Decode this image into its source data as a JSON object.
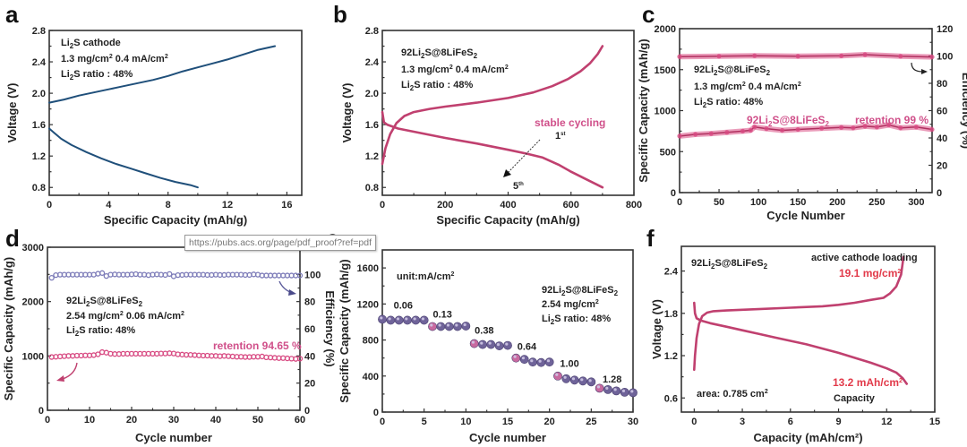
{
  "figure": {
    "tooltip_url": "https://pubs.acs.org/page/pdf_proof?ref=pdf",
    "colors": {
      "navy_curve": "#1f4f7a",
      "magenta_curve": "#c0406f",
      "pink_text": "#d0508a",
      "red_text": "#e23a4a",
      "capacity_marker": "#d84a82",
      "efficiency_marker": "#7c7bb8",
      "rate_marker": "#7a6aa6"
    }
  },
  "chart_data": [
    {
      "id": "a",
      "panel_label": "a",
      "type": "line",
      "title": "",
      "xlabel": "Specific Capacity (mAh/g)",
      "ylabel": "Voltage (V)",
      "xlim": [
        0,
        17
      ],
      "ylim": [
        0.7,
        2.8
      ],
      "xticks": [
        0,
        4,
        8,
        12,
        16
      ],
      "yticks": [
        0.8,
        1.2,
        1.6,
        2.0,
        2.4,
        2.8
      ],
      "xtick_labels": [
        "0",
        "4",
        "8",
        "12",
        "16"
      ],
      "ytick_labels": [
        "0.8",
        "1.2",
        "1.6",
        "2.0",
        "2.4",
        "2.8"
      ],
      "annotations": [
        "Li₂S cathode",
        "1.3 mg/cm² 0.4 mA/cm²",
        "Li₂S ratio : 48%"
      ],
      "series": [
        {
          "name": "charge",
          "color": "#1f4f7a",
          "x": [
            0,
            1,
            2,
            3,
            4,
            5,
            6,
            7,
            8,
            9,
            10,
            11,
            12,
            13,
            14,
            15.2
          ],
          "y": [
            1.88,
            1.92,
            1.97,
            2.01,
            2.05,
            2.09,
            2.13,
            2.17,
            2.22,
            2.28,
            2.33,
            2.38,
            2.43,
            2.49,
            2.55,
            2.6
          ]
        },
        {
          "name": "discharge",
          "color": "#1f4f7a",
          "x": [
            0,
            0.3,
            0.8,
            1.5,
            2.5,
            3.5,
            4.5,
            5.5,
            6.5,
            7.5,
            8.5,
            9.5,
            10
          ],
          "y": [
            1.55,
            1.5,
            1.42,
            1.34,
            1.25,
            1.17,
            1.1,
            1.04,
            0.98,
            0.92,
            0.87,
            0.83,
            0.8
          ]
        }
      ]
    },
    {
      "id": "b",
      "panel_label": "b",
      "type": "line",
      "title": "",
      "xlabel": "Specific Capacity (mAh/g)",
      "ylabel": "Voltage (V)",
      "xlim": [
        0,
        800
      ],
      "ylim": [
        0.7,
        2.8
      ],
      "xticks": [
        0,
        200,
        400,
        600,
        800
      ],
      "yticks": [
        0.8,
        1.2,
        1.6,
        2.0,
        2.4,
        2.8
      ],
      "xtick_labels": [
        "0",
        "200",
        "400",
        "600",
        "800"
      ],
      "ytick_labels": [
        "0.8",
        "1.2",
        "1.6",
        "2.0",
        "2.4",
        "2.8"
      ],
      "annotations": [
        "92Li₂S@8LiFeS₂",
        "1.3 mg/cm² 0.4 mA/cm²",
        "Li₂S ratio : 48%"
      ],
      "pink_annotation": "stable cycling",
      "arrow_start_label": "1st",
      "arrow_end_label": "5th",
      "series": [
        {
          "name": "charge",
          "color": "#c0406f",
          "x": [
            0,
            10,
            25,
            45,
            70,
            100,
            150,
            200,
            300,
            400,
            480,
            540,
            590,
            630,
            660,
            685,
            700
          ],
          "y": [
            1.1,
            1.3,
            1.48,
            1.62,
            1.71,
            1.76,
            1.8,
            1.83,
            1.88,
            1.94,
            2.01,
            2.09,
            2.18,
            2.28,
            2.38,
            2.5,
            2.6
          ]
        },
        {
          "name": "discharge",
          "color": "#c0406f",
          "x": [
            0,
            5,
            15,
            50,
            100,
            200,
            300,
            400,
            460,
            510,
            560,
            600,
            640,
            680,
            700
          ],
          "y": [
            1.76,
            1.63,
            1.6,
            1.55,
            1.51,
            1.43,
            1.36,
            1.28,
            1.23,
            1.18,
            1.09,
            1.0,
            0.92,
            0.84,
            0.8
          ]
        }
      ]
    },
    {
      "id": "c",
      "panel_label": "c",
      "type": "scatter",
      "title": "",
      "xlabel": "Cycle Number",
      "ylabel": "Specific Capacity (mAh/g)",
      "y2label": "Efficiency (%)",
      "xlim": [
        0,
        320
      ],
      "ylim": [
        0,
        2000
      ],
      "y2lim": [
        0,
        120
      ],
      "xticks": [
        0,
        50,
        100,
        150,
        200,
        250,
        300
      ],
      "yticks": [
        0,
        500,
        1000,
        1500,
        2000
      ],
      "y2ticks": [
        0,
        20,
        40,
        60,
        80,
        100,
        120
      ],
      "xtick_labels": [
        "0",
        "50",
        "100",
        "150",
        "200",
        "250",
        "300"
      ],
      "ytick_labels": [
        "0",
        "500",
        "1000",
        "1500",
        "2000"
      ],
      "y2tick_labels": [
        "0",
        "20",
        "40",
        "60",
        "80",
        "100",
        "120"
      ],
      "annotations": [
        "92Li₂S@8LiFeS₂",
        "1.3 mg/cm² 0.4 mA/cm²",
        "Li₂S ratio: 48%"
      ],
      "series_label": "92Li₂S@8LiFeS₂",
      "retention_label": "retention 99 %",
      "series": [
        {
          "name": "capacity",
          "axis": "left",
          "color": "#d84a82",
          "x": [
            0,
            20,
            40,
            60,
            80,
            90,
            95,
            110,
            130,
            150,
            180,
            205,
            220,
            235,
            250,
            265,
            280,
            300,
            320
          ],
          "y": [
            690,
            710,
            720,
            735,
            750,
            760,
            800,
            780,
            760,
            770,
            785,
            795,
            790,
            810,
            800,
            825,
            790,
            800,
            770
          ]
        },
        {
          "name": "efficiency",
          "axis": "right",
          "color": "#d84a82",
          "x": [
            0,
            50,
            95,
            150,
            205,
            235,
            280,
            320
          ],
          "y": [
            99.5,
            99.8,
            100.2,
            99.8,
            100.1,
            101,
            99.8,
            99.3
          ]
        }
      ]
    },
    {
      "id": "d",
      "panel_label": "d",
      "type": "scatter",
      "title": "",
      "xlabel": "Cycle number",
      "ylabel": "Specific Capacity (mAh/g)",
      "y2label": "Efficiency (%)",
      "xlim": [
        0,
        60
      ],
      "ylim": [
        0,
        3000
      ],
      "y2lim": [
        0,
        120
      ],
      "xticks": [
        0,
        10,
        20,
        30,
        40,
        50,
        60
      ],
      "yticks": [
        0,
        1000,
        2000,
        3000
      ],
      "y2ticks": [
        0,
        20,
        40,
        60,
        80,
        100
      ],
      "xtick_labels": [
        "0",
        "10",
        "20",
        "30",
        "40",
        "50",
        "60"
      ],
      "ytick_labels": [
        "0",
        "1000",
        "2000",
        "3000"
      ],
      "y2tick_labels": [
        "0",
        "20",
        "40",
        "60",
        "80",
        "100"
      ],
      "annotations": [
        "92Li₂S@8LiFeS₂",
        "2.54 mg/cm² 0.06 mA/cm²",
        "Li₂S ratio: 48%"
      ],
      "retention_label": "retention 94.65 %",
      "series": [
        {
          "name": "capacity",
          "axis": "left",
          "color": "#d84a82",
          "x": [
            1,
            2,
            3,
            4,
            5,
            6,
            7,
            8,
            9,
            10,
            11,
            12,
            13,
            14,
            15,
            16,
            17,
            18,
            19,
            20,
            21,
            22,
            23,
            24,
            25,
            26,
            27,
            28,
            29,
            30,
            31,
            32,
            33,
            34,
            35,
            36,
            37,
            38,
            39,
            40,
            41,
            42,
            43,
            44,
            45,
            46,
            47,
            48,
            49,
            50,
            51,
            52,
            53,
            54,
            55,
            56,
            57,
            58,
            59,
            60
          ],
          "y": [
            980,
            985,
            990,
            995,
            1000,
            1000,
            1005,
            1005,
            1010,
            1010,
            1015,
            1030,
            1070,
            1060,
            1040,
            1035,
            1035,
            1040,
            1040,
            1040,
            1040,
            1040,
            1040,
            1040,
            1040,
            1040,
            1045,
            1045,
            1050,
            1045,
            1030,
            1025,
            1020,
            1020,
            1015,
            1010,
            1005,
            1005,
            1000,
            1000,
            995,
            1000,
            995,
            990,
            985,
            985,
            980,
            980,
            985,
            985,
            990,
            975,
            970,
            965,
            960,
            960,
            955,
            950,
            945,
            950
          ]
        },
        {
          "name": "efficiency",
          "axis": "right",
          "color": "#7c7bb8",
          "x": [
            1,
            2,
            3,
            4,
            5,
            6,
            7,
            8,
            9,
            10,
            11,
            12,
            13,
            14,
            15,
            16,
            17,
            18,
            19,
            20,
            21,
            22,
            23,
            24,
            25,
            26,
            27,
            28,
            29,
            30,
            31,
            32,
            33,
            34,
            35,
            36,
            37,
            38,
            39,
            40,
            41,
            42,
            43,
            44,
            45,
            46,
            47,
            48,
            49,
            50,
            51,
            52,
            53,
            54,
            55,
            56,
            57,
            58,
            59,
            60
          ],
          "y": [
            97.5,
            99.5,
            99.8,
            99.8,
            99.8,
            99.8,
            99.8,
            99.8,
            99.8,
            99.8,
            99.8,
            100.5,
            101,
            98.8,
            99.8,
            100,
            99.8,
            99.8,
            99.8,
            100,
            100.2,
            99.8,
            99.8,
            99.5,
            99.8,
            100,
            99.8,
            99.6,
            100.3,
            98.6,
            99.5,
            99.6,
            99.8,
            99.8,
            99.8,
            99.8,
            99.8,
            99.6,
            99.6,
            99.8,
            99.6,
            99.6,
            99.8,
            99.8,
            99.8,
            99.8,
            99.6,
            99.6,
            100,
            99.8,
            99.2,
            99.2,
            99.2,
            99.2,
            99.2,
            99.2,
            99.2,
            99.2,
            99.2,
            99.2
          ]
        }
      ]
    },
    {
      "id": "e",
      "panel_label": "e",
      "type": "scatter",
      "title": "",
      "xlabel": "Cycle number",
      "ylabel": "Specific Capacity (mAh/g)",
      "xlim": [
        0,
        30
      ],
      "ylim": [
        0,
        1800
      ],
      "xticks": [
        0,
        5,
        10,
        15,
        20,
        25,
        30
      ],
      "yticks": [
        0,
        400,
        800,
        1200,
        1600
      ],
      "xtick_labels": [
        "0",
        "5",
        "10",
        "15",
        "20",
        "25",
        "30"
      ],
      "ytick_labels": [
        "0",
        "400",
        "800",
        "1200",
        "1600"
      ],
      "unit_label": "unit:mA/cm²",
      "annotations": [
        "92Li₂S@8LiFeS₂",
        "2.54 mg/cm²",
        "Li₂S ratio: 48%"
      ],
      "rate_labels": [
        {
          "text": "0.06",
          "x": 2.5,
          "y": 1150
        },
        {
          "text": "0.13",
          "x": 7.2,
          "y": 1050
        },
        {
          "text": "0.38",
          "x": 12.2,
          "y": 870
        },
        {
          "text": "0.64",
          "x": 17.3,
          "y": 690
        },
        {
          "text": "1.00",
          "x": 22.4,
          "y": 500
        },
        {
          "text": "1.28",
          "x": 27.5,
          "y": 330
        }
      ],
      "series": [
        {
          "name": "capacity",
          "color": "#7a6aa6",
          "x": [
            0,
            1,
            2,
            3,
            4,
            5,
            6,
            7,
            8,
            9,
            10,
            11,
            12,
            13,
            14,
            15,
            16,
            17,
            18,
            19,
            20,
            21,
            22,
            23,
            24,
            25,
            26,
            27,
            28,
            29,
            30
          ],
          "y": [
            1030,
            1020,
            1020,
            1020,
            1020,
            1020,
            950,
            950,
            950,
            950,
            955,
            760,
            750,
            750,
            735,
            740,
            600,
            585,
            555,
            550,
            555,
            400,
            370,
            355,
            345,
            335,
            265,
            250,
            235,
            220,
            215
          ]
        }
      ]
    },
    {
      "id": "f",
      "panel_label": "f",
      "type": "line",
      "title": "",
      "xlabel": "Capacity (mAh/cm²)",
      "ylabel": "Voltage (V)",
      "xlim": [
        -0.8,
        15
      ],
      "ylim": [
        0.4,
        2.75
      ],
      "xticks": [
        0,
        3,
        6,
        9,
        12,
        15
      ],
      "yticks": [
        0.6,
        1.2,
        1.8,
        2.4
      ],
      "xtick_labels": [
        "0",
        "3",
        "6",
        "9",
        "12",
        "15"
      ],
      "ytick_labels": [
        "0.6",
        "1.2",
        "1.8",
        "2.4"
      ],
      "annotations_black": [
        "92Li₂S@8LiFeS₂",
        "active cathode loading",
        "area: 0.785 cm²",
        "Capacity"
      ],
      "annotations_red": [
        "19.1 mg/cm²",
        "13.2 mAh/cm²"
      ],
      "series": [
        {
          "name": "charge",
          "color": "#c0406f",
          "x": [
            0,
            0.05,
            0.15,
            0.3,
            0.5,
            0.8,
            1.2,
            2,
            4,
            6,
            8,
            9,
            10,
            11,
            11.8,
            12.2,
            12.6,
            12.9,
            13.05
          ],
          "y": [
            1.0,
            1.2,
            1.45,
            1.65,
            1.76,
            1.81,
            1.83,
            1.84,
            1.86,
            1.88,
            1.9,
            1.92,
            1.95,
            1.99,
            2.02,
            2.08,
            2.18,
            2.35,
            2.6
          ]
        },
        {
          "name": "discharge",
          "color": "#c0406f",
          "x": [
            0,
            0.05,
            0.15,
            0.4,
            1,
            2,
            3,
            4,
            5,
            6,
            7,
            8,
            9,
            10,
            11,
            12,
            12.6,
            13,
            13.25
          ],
          "y": [
            1.95,
            1.8,
            1.73,
            1.7,
            1.66,
            1.61,
            1.56,
            1.51,
            1.46,
            1.41,
            1.36,
            1.3,
            1.24,
            1.17,
            1.1,
            1.02,
            0.96,
            0.88,
            0.8
          ]
        }
      ]
    }
  ]
}
